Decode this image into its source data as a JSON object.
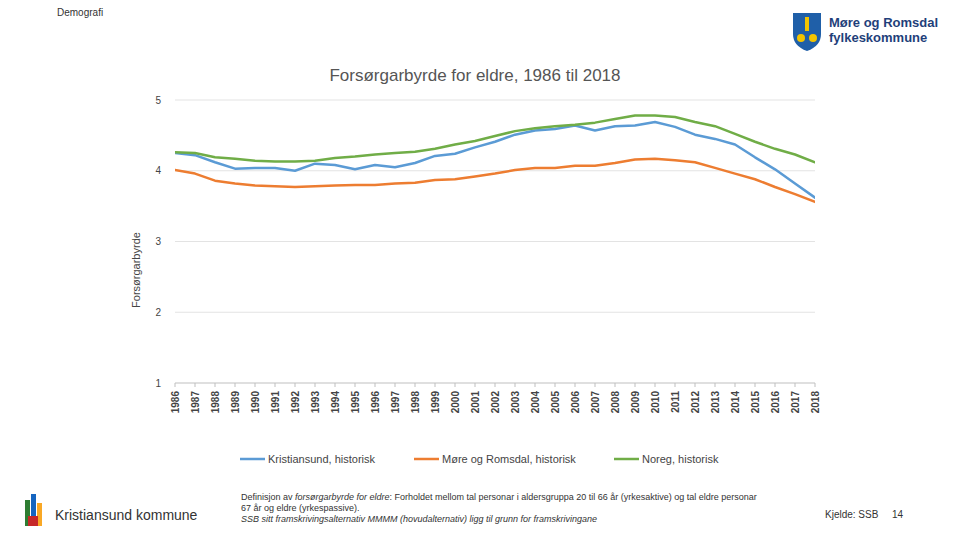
{
  "chart_data": {
    "type": "line",
    "title": "Forsørgarbyrde for eldre, 1986 til 2018",
    "y_label": "Forsørgarbyrde",
    "x": [
      1986,
      1987,
      1988,
      1989,
      1990,
      1991,
      1992,
      1993,
      1994,
      1995,
      1996,
      1997,
      1998,
      1999,
      2000,
      2001,
      2002,
      2003,
      2004,
      2005,
      2006,
      2007,
      2008,
      2009,
      2010,
      2011,
      2012,
      2013,
      2014,
      2015,
      2016,
      2017,
      2018
    ],
    "xlim": [
      1986,
      2018
    ],
    "xticks": [
      1986,
      1987,
      1988,
      1989,
      1990,
      1991,
      1992,
      1993,
      1994,
      1995,
      1996,
      1997,
      1998,
      1999,
      2000,
      2001,
      2002,
      2003,
      2004,
      2005,
      2006,
      2007,
      2008,
      2009,
      2010,
      2011,
      2012,
      2013,
      2014,
      2015,
      2016,
      2017,
      2018
    ],
    "ylim": [
      1,
      5
    ],
    "yticks": [
      1,
      2,
      3,
      4,
      5
    ],
    "grid": true,
    "legend": "bottom",
    "series": [
      {
        "name": "Kristiansund, historisk",
        "color": "#5b9bd5",
        "values": [
          4.25,
          4.22,
          4.12,
          4.03,
          4.04,
          4.04,
          4.0,
          4.1,
          4.08,
          4.02,
          4.08,
          4.05,
          4.11,
          4.21,
          4.24,
          4.33,
          4.41,
          4.51,
          4.57,
          4.59,
          4.64,
          4.57,
          4.63,
          4.64,
          4.69,
          4.62,
          4.51,
          4.45,
          4.37,
          4.19,
          4.02,
          3.82,
          3.62
        ]
      },
      {
        "name": "Møre og Romsdal, historisk",
        "color": "#ed7d31",
        "values": [
          4.01,
          3.96,
          3.86,
          3.82,
          3.79,
          3.78,
          3.77,
          3.78,
          3.79,
          3.8,
          3.8,
          3.82,
          3.83,
          3.87,
          3.88,
          3.92,
          3.96,
          4.01,
          4.04,
          4.04,
          4.07,
          4.07,
          4.11,
          4.16,
          4.17,
          4.15,
          4.12,
          4.04,
          3.96,
          3.88,
          3.77,
          3.67,
          3.56
        ]
      },
      {
        "name": "Noreg, historisk",
        "color": "#70ad47",
        "values": [
          4.26,
          4.25,
          4.19,
          4.17,
          4.14,
          4.13,
          4.13,
          4.14,
          4.18,
          4.2,
          4.23,
          4.25,
          4.27,
          4.31,
          4.37,
          4.42,
          4.49,
          4.56,
          4.6,
          4.63,
          4.65,
          4.68,
          4.73,
          4.78,
          4.78,
          4.76,
          4.69,
          4.63,
          4.52,
          4.41,
          4.31,
          4.23,
          4.12
        ]
      }
    ]
  },
  "page": {
    "section": "Demografi",
    "logo_lines": [
      "Møre og Romsdal",
      "fylkeskommune"
    ],
    "footer_left": "Kristiansund kommune",
    "definition": {
      "lead": "Definisjon av ",
      "term": "forsørgarbyrde for eldre",
      "text": ": Forholdet mellom tal personar i aldersgruppa 20 til 66 år (yrkesaktive) og tal eldre personar 67 år og eldre (yrkespassive)."
    },
    "note": "SSB sitt framskrivingsalternativ MMMM (hovudalternativ) ligg til grunn for framskrivingane",
    "source": "Kjelde: SSB",
    "page_number": 14
  }
}
